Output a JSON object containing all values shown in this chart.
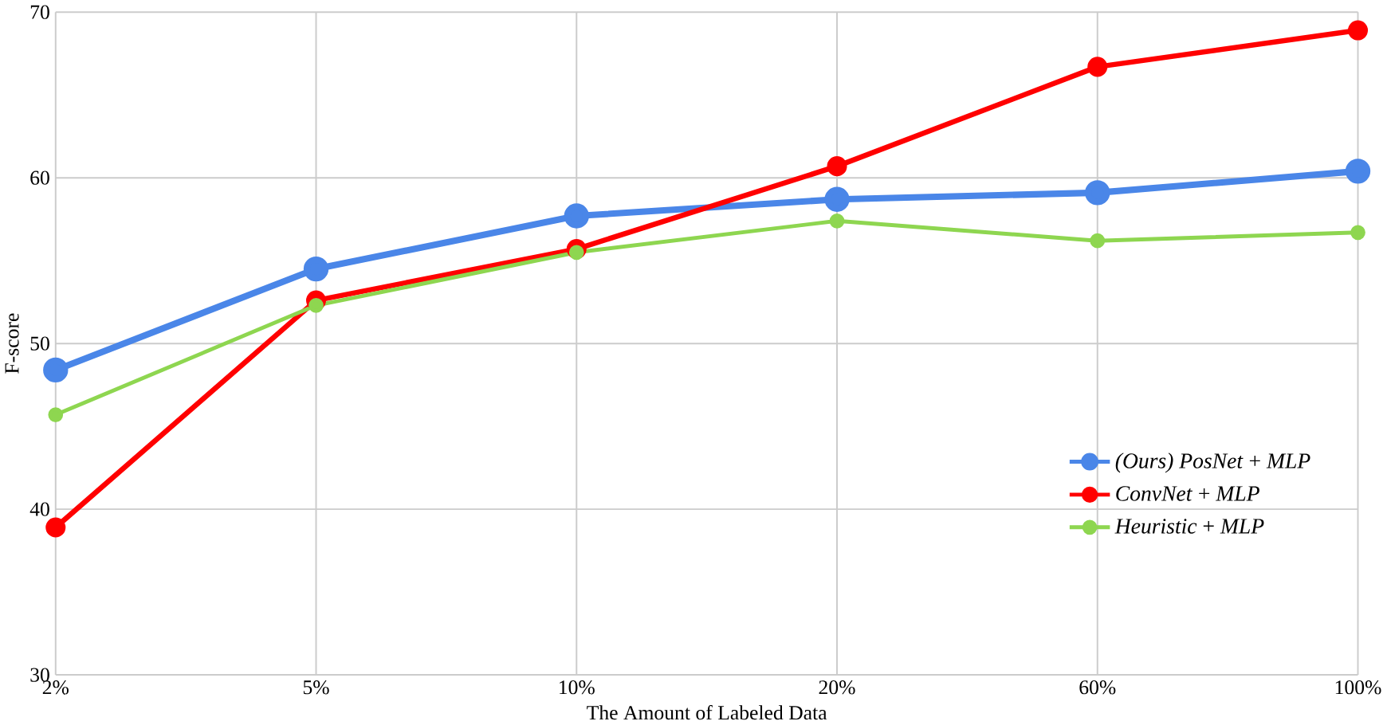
{
  "chart_data": {
    "type": "line",
    "xlabel": "The Amount of Labeled Data",
    "ylabel": "F-score",
    "categories": [
      "2%",
      "5%",
      "10%",
      "20%",
      "60%",
      "100%"
    ],
    "series": [
      {
        "name": "*(Ours) PosNet* + *MLP*",
        "color": "#4a86e8",
        "values": [
          48.4,
          54.5,
          57.7,
          58.7,
          59.1,
          60.4
        ]
      },
      {
        "name": "*ConvNet* + *MLP*",
        "color": "#ff0000",
        "values": [
          38.9,
          52.6,
          55.7,
          60.7,
          66.7,
          68.9
        ]
      },
      {
        "name": "*Heuristic* + *MLP*",
        "color": "#8ed650",
        "values": [
          45.7,
          52.3,
          55.5,
          57.4,
          56.2,
          56.7
        ]
      }
    ],
    "ylim": [
      30,
      70
    ],
    "yticks": [
      30,
      40,
      50,
      60,
      70
    ],
    "grid": true,
    "legend": "bottom right",
    "marker": "circle",
    "line_style": "solid"
  }
}
